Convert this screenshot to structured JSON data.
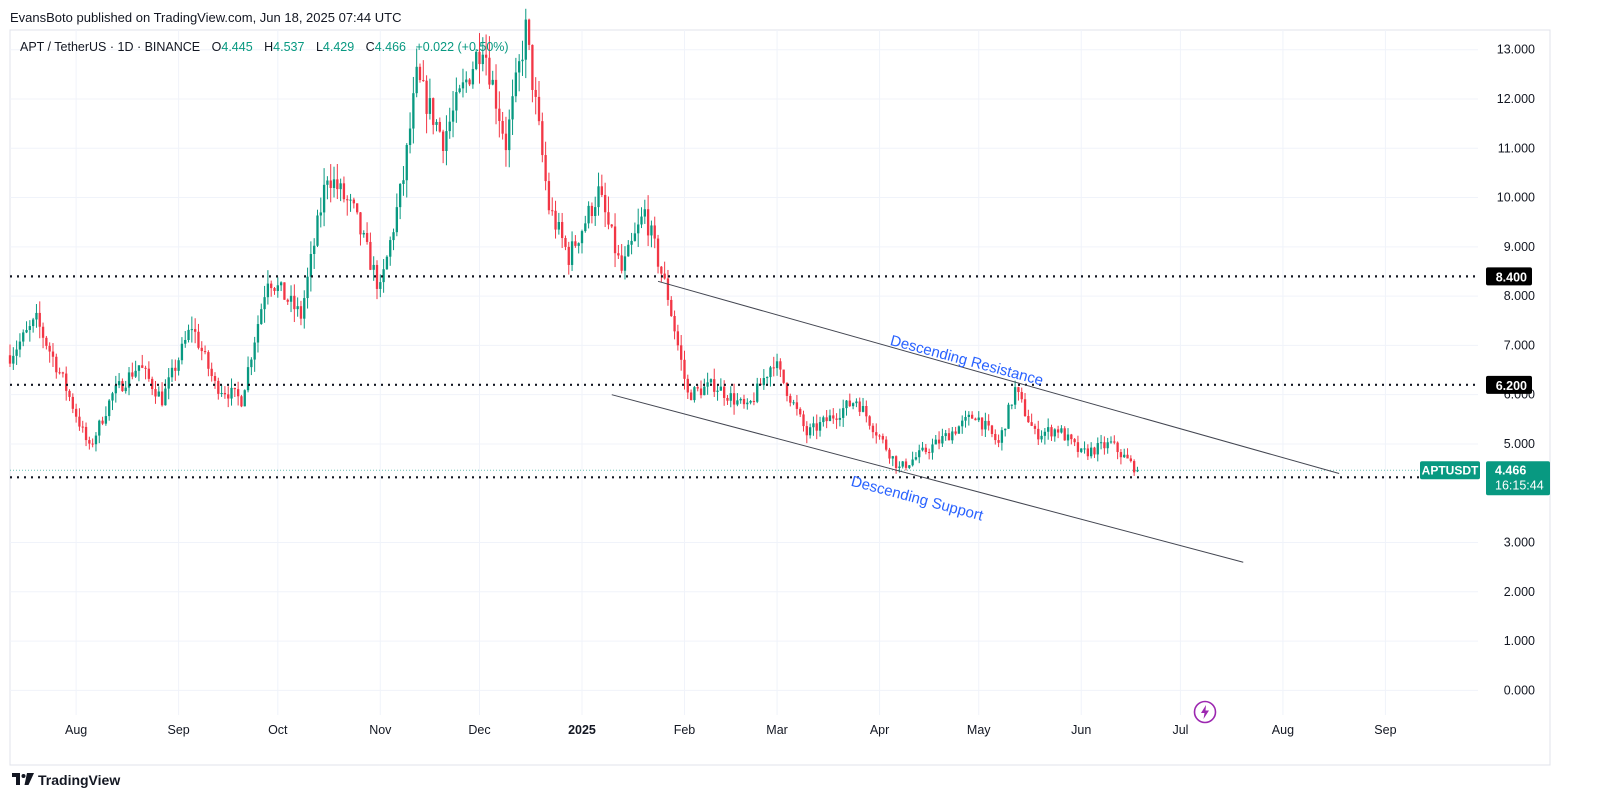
{
  "header": {
    "published_by": "EvansBoto published on TradingView.com, Jun 18, 2025 07:44 UTC"
  },
  "legend": {
    "symbol": "APT / TetherUS · 1D · BINANCE",
    "open_label": "O",
    "open": "4.445",
    "high_label": "H",
    "high": "4.537",
    "low_label": "L",
    "low": "4.429",
    "close_label": "C",
    "close": "4.466",
    "change": "+0.022 (+0.50%)"
  },
  "footer": {
    "brand": "TradingView",
    "logo_icon": "tradingview-logo-icon",
    "watermark_icon": "lightning-icon"
  },
  "colors": {
    "up": "#089981",
    "down": "#f23645",
    "annotation": "#2962ff",
    "price_tag": "#089981"
  },
  "chart_data": {
    "type": "candlestick",
    "symbol": "APTUSDT",
    "timeframe": "1D",
    "y_axis": {
      "ticks": [
        "0.000",
        "1.000",
        "2.000",
        "3.000",
        "5.000",
        "6.000",
        "7.000",
        "8.000",
        "9.000",
        "10.000",
        "11.000",
        "12.000",
        "13.000"
      ],
      "ylim": [
        -0.5,
        13.4
      ]
    },
    "x_axis": {
      "ticks": [
        {
          "label": "Aug",
          "date": "2024-08-01"
        },
        {
          "label": "Sep",
          "date": "2024-09-01"
        },
        {
          "label": "Oct",
          "date": "2024-10-01"
        },
        {
          "label": "Nov",
          "date": "2024-11-01"
        },
        {
          "label": "Dec",
          "date": "2024-12-01"
        },
        {
          "label": "2025",
          "date": "2025-01-01",
          "bold": true
        },
        {
          "label": "Feb",
          "date": "2025-02-01"
        },
        {
          "label": "Mar",
          "date": "2025-03-01"
        },
        {
          "label": "Apr",
          "date": "2025-04-01"
        },
        {
          "label": "May",
          "date": "2025-05-01"
        },
        {
          "label": "Jun",
          "date": "2025-06-01"
        },
        {
          "label": "Jul",
          "date": "2025-07-01"
        },
        {
          "label": "Aug",
          "date": "2025-08-01"
        },
        {
          "label": "Sep",
          "date": "2025-09-01"
        }
      ],
      "range": [
        "2024-07-12",
        "2025-09-29"
      ]
    },
    "anchors": [
      {
        "date": "2024-07-12",
        "price": 6.8
      },
      {
        "date": "2024-07-20",
        "price": 7.5
      },
      {
        "date": "2024-07-28",
        "price": 6.3
      },
      {
        "date": "2024-08-05",
        "price": 4.9
      },
      {
        "date": "2024-08-12",
        "price": 6.0
      },
      {
        "date": "2024-08-20",
        "price": 6.6
      },
      {
        "date": "2024-08-27",
        "price": 5.9
      },
      {
        "date": "2024-09-05",
        "price": 7.4
      },
      {
        "date": "2024-09-12",
        "price": 6.2
      },
      {
        "date": "2024-09-20",
        "price": 5.9
      },
      {
        "date": "2024-09-28",
        "price": 8.4
      },
      {
        "date": "2024-10-08",
        "price": 7.6
      },
      {
        "date": "2024-10-16",
        "price": 10.5
      },
      {
        "date": "2024-10-24",
        "price": 9.7
      },
      {
        "date": "2024-11-01",
        "price": 8.1
      },
      {
        "date": "2024-11-08",
        "price": 10.4
      },
      {
        "date": "2024-11-12",
        "price": 12.4
      },
      {
        "date": "2024-11-20",
        "price": 11.2
      },
      {
        "date": "2024-12-02",
        "price": 13.2
      },
      {
        "date": "2024-12-09",
        "price": 11.1
      },
      {
        "date": "2024-12-15",
        "price": 13.4
      },
      {
        "date": "2024-12-22",
        "price": 9.8
      },
      {
        "date": "2024-12-28",
        "price": 8.8
      },
      {
        "date": "2025-01-06",
        "price": 10.1
      },
      {
        "date": "2025-01-13",
        "price": 8.5
      },
      {
        "date": "2025-01-20",
        "price": 9.7
      },
      {
        "date": "2025-01-27",
        "price": 8.0
      },
      {
        "date": "2025-02-02",
        "price": 6.0
      },
      {
        "date": "2025-02-10",
        "price": 6.2
      },
      {
        "date": "2025-02-20",
        "price": 5.7
      },
      {
        "date": "2025-02-28",
        "price": 6.7
      },
      {
        "date": "2025-03-10",
        "price": 5.2
      },
      {
        "date": "2025-03-25",
        "price": 5.9
      },
      {
        "date": "2025-04-07",
        "price": 4.5
      },
      {
        "date": "2025-04-18",
        "price": 5.0
      },
      {
        "date": "2025-04-30",
        "price": 5.6
      },
      {
        "date": "2025-05-07",
        "price": 5.0
      },
      {
        "date": "2025-05-12",
        "price": 6.1
      },
      {
        "date": "2025-05-18",
        "price": 5.2
      },
      {
        "date": "2025-05-25",
        "price": 5.3
      },
      {
        "date": "2025-06-01",
        "price": 4.8
      },
      {
        "date": "2025-06-10",
        "price": 5.0
      },
      {
        "date": "2025-06-18",
        "price": 4.466
      }
    ],
    "horizontal_levels": [
      {
        "price": 8.4,
        "label": "8.400"
      },
      {
        "price": 6.2,
        "label": "6.200"
      },
      {
        "price": 4.323,
        "label": "4.323"
      }
    ],
    "trendlines": [
      {
        "name": "Descending Resistance",
        "from": {
          "date": "2025-01-24",
          "price": 8.3
        },
        "to": {
          "date": "2025-08-18",
          "price": 4.4
        }
      },
      {
        "name": "Descending Support",
        "from": {
          "date": "2025-01-10",
          "price": 6.0
        },
        "to": {
          "date": "2025-07-20",
          "price": 2.6
        }
      }
    ],
    "annotations": [
      {
        "text": "Descending Resistance",
        "date": "2025-04-27",
        "price": 6.6,
        "angle": 15
      },
      {
        "text": "Descending Support",
        "date": "2025-04-12",
        "price": 3.8,
        "angle": 15
      }
    ],
    "last_price": {
      "symbol_label": "APTUSDT",
      "value": "4.466",
      "countdown": "16:15:44"
    },
    "grid": true
  }
}
